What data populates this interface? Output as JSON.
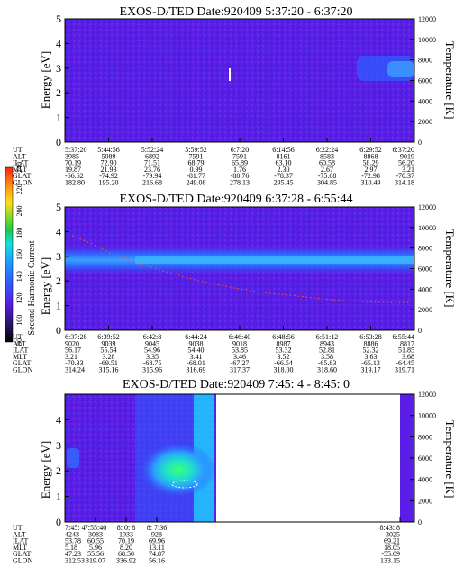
{
  "colors": {
    "background": "#5a1ee6",
    "blue": "#1e6cff",
    "cyan": "#39a8ff",
    "green": "#3cff7a",
    "white_streak": "#ffffff",
    "colorbar": [
      "#000000",
      "#2a1466",
      "#5a1ee6",
      "#2f5cff",
      "#1f9bff",
      "#12e0e0",
      "#20c94a",
      "#8bd92b",
      "#ffdc1a",
      "#ff8c12",
      "#ff2210"
    ]
  },
  "colorbar": {
    "label": "Second Harmonic Current",
    "ticks": [
      "80",
      "100",
      "120",
      "140",
      "160",
      "180",
      "200",
      "220",
      "240"
    ]
  },
  "chart_data": [
    {
      "type": "heatmap",
      "title": "EXOS-D/TED   Date:920409  5:37:20 - 6:37:20",
      "ylabel": "Energy [eV]",
      "y2label": "Temperature [K]",
      "ylim": [
        0,
        5
      ],
      "y2lim": [
        0,
        12000
      ],
      "yticks": [
        "0",
        "1",
        "2",
        "3",
        "4",
        "5"
      ],
      "y2ticks": [
        "0",
        "2000",
        "4000",
        "6000",
        "8000",
        "10000",
        "12000"
      ],
      "row_labels": [
        "UT",
        "ALT",
        "ILAT",
        "MLT",
        "GLAT",
        "GLON"
      ],
      "columns": [
        [
          "5:37:20",
          "3985",
          "70.19",
          "19.87",
          "-66.62",
          "182.80"
        ],
        [
          "5:44:56",
          "5089",
          "72.90",
          "21.93",
          "-74.92",
          "195.20"
        ],
        [
          "5:52:24",
          "6892",
          "71.51",
          "23.76",
          "-79.94",
          "216.68"
        ],
        [
          "5:59:52",
          "7591",
          "68.79",
          "0.99",
          "-81.77",
          "249.08"
        ],
        [
          "6:7:20",
          "7591",
          "65.89",
          "1.76",
          "-80.76",
          "278.13"
        ],
        [
          "6:14:56",
          "8161",
          "63.10",
          "2.30",
          "-78.37",
          "295.45"
        ],
        [
          "6:22:24",
          "8583",
          "60.58",
          "2.67",
          "-75.68",
          "304.85"
        ],
        [
          "6:29:52",
          "8868",
          "58.29",
          "2.97",
          "-72.98",
          "310.49"
        ],
        [
          "6:37:20",
          "9019",
          "56.20",
          "3.21",
          "-70.37",
          "314.18"
        ]
      ],
      "grid": false
    },
    {
      "type": "heatmap",
      "title": "EXOS-D/TED   Date:920409  6:37:28 - 6:55:44",
      "ylabel": "Energy [eV]",
      "y2label": "Temperature [K]",
      "ylim": [
        0,
        5
      ],
      "y2lim": [
        0,
        12000
      ],
      "yticks": [
        "0",
        "1",
        "2",
        "3",
        "4",
        "5"
      ],
      "y2ticks": [
        "0",
        "2000",
        "4000",
        "6000",
        "8000",
        "10000",
        "12000"
      ],
      "row_labels": [
        "UT",
        "ALT",
        "ILAT",
        "MLT",
        "GLAT",
        "GLON"
      ],
      "columns": [
        [
          "6:37:28",
          "9020",
          "56.17",
          "3.21",
          "-70.33",
          "314.24"
        ],
        [
          "6:39:52",
          "9039",
          "55.54",
          "3.28",
          "-69.51",
          "315.16"
        ],
        [
          "6:42:8",
          "9045",
          "54.96",
          "3.35",
          "-68.75",
          "315.96"
        ],
        [
          "6:44:24",
          "9038",
          "54.40",
          "3.41",
          "-68.01",
          "316.69"
        ],
        [
          "6:46:40",
          "9018",
          "53.85",
          "3.46",
          "-67.27",
          "317.37"
        ],
        [
          "6:48:56",
          "8987",
          "53.32",
          "3.52",
          "-66.54",
          "318.00"
        ],
        [
          "6:51:12",
          "8943",
          "52.81",
          "3.58",
          "-65.83",
          "318.60"
        ],
        [
          "6:53:28",
          "8886",
          "52.32",
          "3.63",
          "-65.13",
          "319.17"
        ],
        [
          "6:55:44",
          "8817",
          "51.85",
          "3.68",
          "-64.45",
          "319.71"
        ]
      ],
      "grid": false
    },
    {
      "type": "heatmap",
      "title": "EXOS-D/TED   Date:920409  7:45: 4 - 8:45: 0",
      "ylabel": "Energy [eV]",
      "y2label": "Temperature [K]",
      "ylim": [
        0,
        5
      ],
      "y2lim": [
        0,
        12000
      ],
      "yticks": [
        "0",
        "1",
        "2",
        "3",
        "4"
      ],
      "y2ticks": [
        "0",
        "2000",
        "4000",
        "6000",
        "8000",
        "10000",
        "12000"
      ],
      "row_labels": [
        "UT",
        "ALT",
        "ILAT",
        "MLT",
        "GLAT",
        "GLON"
      ],
      "columns": [
        [
          "7:45: 4",
          "4243",
          "53.78",
          "5.18",
          "47.23",
          "312.53"
        ],
        [
          "7:55:40",
          "3083",
          "60.55",
          "5.96",
          "55.56",
          "319.07"
        ],
        [
          "8: 0: 8",
          "1933",
          "70.19",
          "8.20",
          "68.50",
          "336.92"
        ],
        [
          "8: 7:36",
          "928",
          "69.96",
          "13.11",
          "74.87",
          "56.16"
        ],
        [
          "8:43: 8",
          "3025",
          "69.21",
          "18.05",
          "-55.09",
          "133.15"
        ]
      ],
      "grid": false
    }
  ]
}
